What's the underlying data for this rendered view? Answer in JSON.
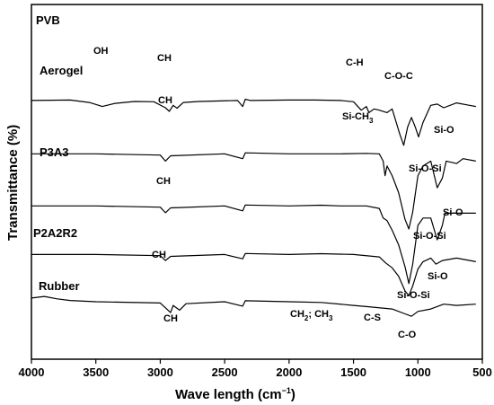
{
  "chart_data": {
    "type": "line",
    "title": "",
    "xlabel": "Wave length (cm",
    "xlabel_sup": "−1",
    "xlabel_close": ")",
    "ylabel": "Transmittance (%)",
    "x_ticks": [
      "4000",
      "3500",
      "3000",
      "2500",
      "2000",
      "1500",
      "1000",
      "500"
    ],
    "xlim": [
      4000,
      500
    ],
    "x_reversed": true,
    "grid": false,
    "legend": "none",
    "series": [
      {
        "name": "PVB",
        "offset": 8.3,
        "points": [
          [
            4000,
            0
          ],
          [
            3700,
            0.02
          ],
          [
            3550,
            -0.08
          ],
          [
            3450,
            -0.25
          ],
          [
            3350,
            -0.12
          ],
          [
            3200,
            -0.04
          ],
          [
            3050,
            -0.05
          ],
          [
            2960,
            -0.3
          ],
          [
            2930,
            -0.45
          ],
          [
            2900,
            -0.2
          ],
          [
            2870,
            -0.32
          ],
          [
            2820,
            -0.08
          ],
          [
            2700,
            -0.04
          ],
          [
            2400,
            0
          ],
          [
            2360,
            -0.25
          ],
          [
            2340,
            0.05
          ],
          [
            2300,
            0
          ],
          [
            2000,
            0.02
          ],
          [
            1800,
            0.02
          ],
          [
            1600,
            0.0
          ],
          [
            1500,
            -0.05
          ],
          [
            1440,
            -0.4
          ],
          [
            1400,
            -0.25
          ],
          [
            1380,
            -0.5
          ],
          [
            1340,
            -0.35
          ],
          [
            1300,
            -0.4
          ],
          [
            1240,
            -0.5
          ],
          [
            1200,
            -0.35
          ],
          [
            1140,
            -1.4
          ],
          [
            1110,
            -1.85
          ],
          [
            1080,
            -1.1
          ],
          [
            1050,
            -0.7
          ],
          [
            1020,
            -1.1
          ],
          [
            995,
            -1.5
          ],
          [
            960,
            -0.9
          ],
          [
            900,
            -0.2
          ],
          [
            850,
            -0.15
          ],
          [
            800,
            -0.3
          ],
          [
            700,
            -0.1
          ],
          [
            600,
            -0.2
          ],
          [
            550,
            -0.25
          ]
        ]
      },
      {
        "name": "Aerogel",
        "offset": 6.1,
        "points": [
          [
            4000,
            0
          ],
          [
            3500,
            0
          ],
          [
            3000,
            -0.05
          ],
          [
            2960,
            -0.3
          ],
          [
            2920,
            -0.08
          ],
          [
            2500,
            0
          ],
          [
            2360,
            -0.2
          ],
          [
            2340,
            0.04
          ],
          [
            2000,
            0
          ],
          [
            1600,
            0
          ],
          [
            1400,
            0.02
          ],
          [
            1300,
            0.0
          ],
          [
            1270,
            -0.3
          ],
          [
            1255,
            -0.9
          ],
          [
            1240,
            -0.5
          ],
          [
            1200,
            -0.9
          ],
          [
            1150,
            -1.6
          ],
          [
            1100,
            -2.7
          ],
          [
            1070,
            -3.1
          ],
          [
            1040,
            -2.4
          ],
          [
            1000,
            -0.9
          ],
          [
            960,
            -0.5
          ],
          [
            900,
            -0.3
          ],
          [
            850,
            -1.4
          ],
          [
            810,
            -1.0
          ],
          [
            780,
            -0.3
          ],
          [
            700,
            -0.4
          ],
          [
            650,
            -0.2
          ],
          [
            550,
            -0.3
          ]
        ]
      },
      {
        "name": "P3A3",
        "offset": 3.95,
        "points": [
          [
            4000,
            0
          ],
          [
            3500,
            0
          ],
          [
            3000,
            -0.05
          ],
          [
            2960,
            -0.28
          ],
          [
            2920,
            -0.08
          ],
          [
            2500,
            0
          ],
          [
            2360,
            -0.2
          ],
          [
            2340,
            0.04
          ],
          [
            2000,
            0
          ],
          [
            1750,
            0.03
          ],
          [
            1600,
            0
          ],
          [
            1400,
            0
          ],
          [
            1300,
            -0.1
          ],
          [
            1270,
            -0.5
          ],
          [
            1240,
            -0.6
          ],
          [
            1200,
            -1.0
          ],
          [
            1150,
            -1.6
          ],
          [
            1100,
            -2.5
          ],
          [
            1070,
            -3.2
          ],
          [
            1040,
            -2.4
          ],
          [
            1000,
            -0.8
          ],
          [
            960,
            -0.5
          ],
          [
            900,
            -0.5
          ],
          [
            850,
            -1.4
          ],
          [
            810,
            -0.8
          ],
          [
            790,
            -0.3
          ],
          [
            700,
            -0.3
          ],
          [
            550,
            -0.3
          ]
        ]
      },
      {
        "name": "P2A2R2",
        "offset": 1.95,
        "points": [
          [
            4000,
            0
          ],
          [
            3500,
            0
          ],
          [
            3000,
            -0.05
          ],
          [
            2960,
            -0.25
          ],
          [
            2920,
            -0.08
          ],
          [
            2500,
            0
          ],
          [
            2360,
            -0.18
          ],
          [
            2340,
            0.04
          ],
          [
            2000,
            0
          ],
          [
            1750,
            0.03
          ],
          [
            1500,
            0
          ],
          [
            1300,
            -0.1
          ],
          [
            1250,
            -0.35
          ],
          [
            1200,
            -0.55
          ],
          [
            1150,
            -0.9
          ],
          [
            1100,
            -1.5
          ],
          [
            1070,
            -1.7
          ],
          [
            1040,
            -1.3
          ],
          [
            1000,
            -0.6
          ],
          [
            960,
            -0.3
          ],
          [
            900,
            -0.15
          ],
          [
            860,
            -0.4
          ],
          [
            810,
            -0.25
          ],
          [
            700,
            -0.15
          ],
          [
            550,
            -0.3
          ]
        ]
      },
      {
        "name": "Rubber",
        "offset": 0,
        "points": [
          [
            4000,
            0.15
          ],
          [
            3900,
            0.22
          ],
          [
            3800,
            0.12
          ],
          [
            3700,
            0.05
          ],
          [
            3500,
            0
          ],
          [
            3000,
            -0.05
          ],
          [
            2920,
            -0.45
          ],
          [
            2900,
            -0.15
          ],
          [
            2850,
            -0.35
          ],
          [
            2800,
            -0.08
          ],
          [
            2500,
            0
          ],
          [
            2360,
            -0.18
          ],
          [
            2340,
            0.04
          ],
          [
            2000,
            0
          ],
          [
            1750,
            -0.03
          ],
          [
            1500,
            -0.15
          ],
          [
            1400,
            -0.2
          ],
          [
            1200,
            -0.3
          ],
          [
            1100,
            -0.5
          ],
          [
            1050,
            -0.6
          ],
          [
            1000,
            -0.4
          ],
          [
            900,
            -0.3
          ],
          [
            800,
            -0.1
          ],
          [
            700,
            -0.15
          ],
          [
            550,
            -0.1
          ]
        ]
      }
    ],
    "labels": {
      "PVB": "PVB",
      "Aerogel": "Aerogel",
      "P3A3": "P3A3",
      "P2A2R2": "P2A2R2",
      "Rubber": "Rubber"
    },
    "annotations": {
      "pvb_oh": "OH",
      "pvb_ch": "CH",
      "pvb_ch2": "C-H",
      "pvb_coc": "C-O-C",
      "aero_ch": "CH",
      "aero_sich3_main": "Si-CH",
      "aero_sich3_sub": "3",
      "aero_sio": "Si-O",
      "aero_siosi": "Si-O-Si",
      "p3a3_ch": "CH",
      "p3a3_siosi": "Si-O-Si",
      "p3a3_sio": "Si-O",
      "p2a2r2_ch": "CH",
      "p2a2r2_sio": "Si-O",
      "p2a2r2_siosi": "Si-O-Si",
      "rubber_ch": "CH",
      "rubber_ch2": "CH",
      "rubber_ch2_sub": "2",
      "rubber_sep": "; CH",
      "rubber_ch3_sub": "3",
      "rubber_cs": "C-S",
      "rubber_co": "C-O"
    }
  }
}
